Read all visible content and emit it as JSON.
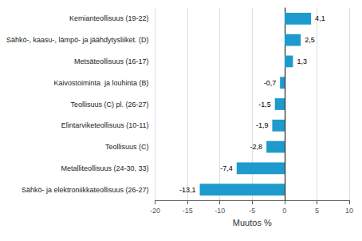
{
  "chart_data": {
    "type": "bar",
    "orientation": "horizontal",
    "categories": [
      "Sähkö- ja elektroniikkateollisuus (26-27)",
      "Metalliteollisuus (24-30, 33)",
      "Teollisuus (C)",
      "Elintarviketeollisuus (10-11)",
      "Teollisuus (C) pl. (26-27)",
      "Kaivostoiminta  ja louhinta (B)",
      "Metsäteollisuus (16-17)",
      "Sähkö-, kaasu-, lämpö- ja jäähdytysliiket. (D)",
      "Kemianteollisuus (19-22)"
    ],
    "values": [
      -13.1,
      -7.4,
      -2.8,
      -1.9,
      -1.5,
      -0.7,
      1.3,
      2.5,
      4.1
    ],
    "value_labels": [
      "-13,1",
      "-7,4",
      "-2,8",
      "-1,9",
      "-1,5",
      "-0,7",
      "1,3",
      "2,5",
      "4,1"
    ],
    "data_labels": true,
    "color": "#1c9bcc",
    "xlabel": "Muutos %",
    "xlim": [
      -20,
      10
    ],
    "xticks": [
      -20,
      -15,
      -10,
      -5,
      0,
      5,
      10
    ],
    "grid": true
  }
}
